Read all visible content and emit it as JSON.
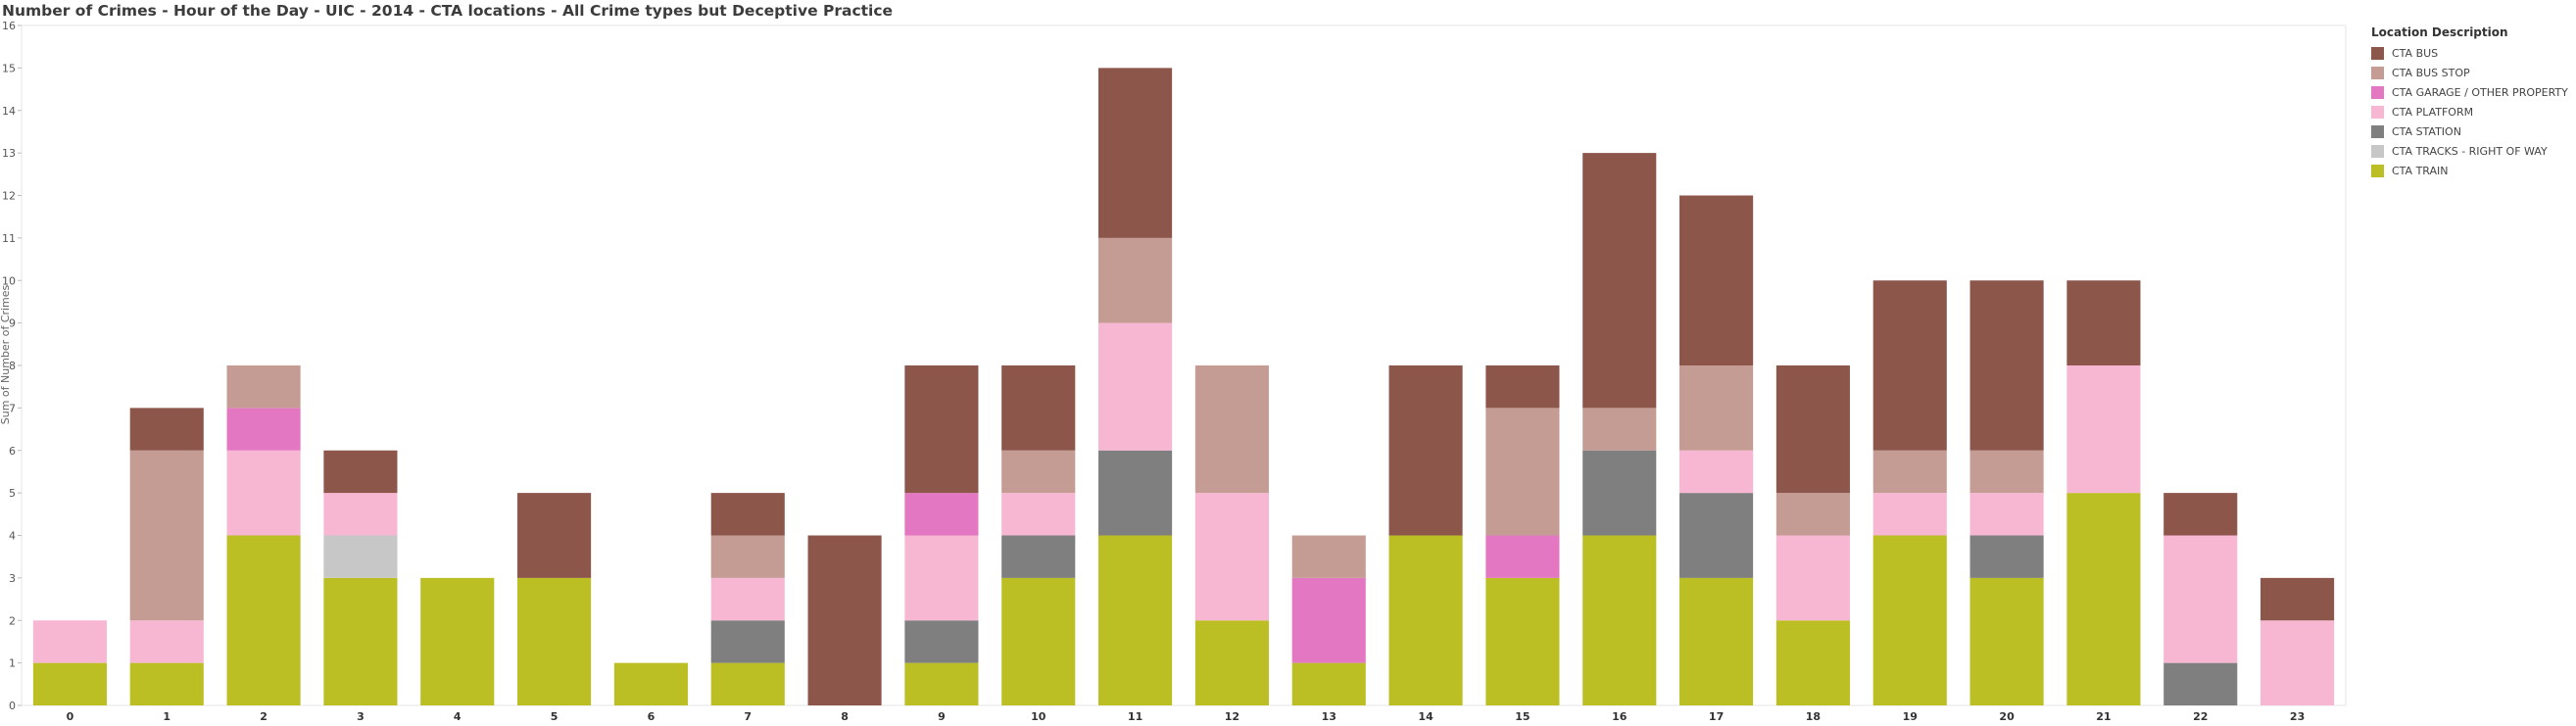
{
  "chart_data": {
    "type": "bar",
    "stacked": true,
    "title": "Number of Crimes - Hour of the Day - UIC - 2014 - CTA locations - All Crime types but Deceptive Practice",
    "ylabel": "Sum of Number of Crimes",
    "xlabel": "",
    "ylim": [
      0,
      16
    ],
    "yticks": [
      "0",
      "1",
      "2",
      "3",
      "4",
      "5",
      "6",
      "7",
      "8",
      "9",
      "10",
      "11",
      "12",
      "13",
      "14",
      "15",
      "16"
    ],
    "grid": false,
    "legend_position": "right",
    "legend_title": "Location Description",
    "categories": [
      "0",
      "1",
      "2",
      "3",
      "4",
      "5",
      "6",
      "7",
      "8",
      "9",
      "10",
      "11",
      "12",
      "13",
      "14",
      "15",
      "16",
      "17",
      "18",
      "19",
      "20",
      "21",
      "22",
      "23"
    ],
    "series": [
      {
        "name": "CTA TRAIN",
        "color": "#bcbf24",
        "values": [
          1,
          1,
          4,
          3,
          3,
          3,
          1,
          1,
          0,
          1,
          3,
          4,
          2,
          1,
          4,
          3,
          4,
          3,
          2,
          4,
          3,
          5,
          0,
          0
        ]
      },
      {
        "name": "CTA TRACKS - RIGHT OF WAY",
        "color": "#c7c7c7",
        "values": [
          0,
          0,
          0,
          1,
          0,
          0,
          0,
          0,
          0,
          0,
          0,
          0,
          0,
          0,
          0,
          0,
          0,
          0,
          0,
          0,
          0,
          0,
          0,
          0
        ]
      },
      {
        "name": "CTA STATION",
        "color": "#7f7f7f",
        "values": [
          0,
          0,
          0,
          0,
          0,
          0,
          0,
          1,
          0,
          1,
          1,
          2,
          0,
          0,
          0,
          0,
          2,
          2,
          0,
          0,
          1,
          0,
          1,
          0
        ]
      },
      {
        "name": "CTA PLATFORM",
        "color": "#f7b6d2",
        "values": [
          1,
          1,
          2,
          1,
          0,
          0,
          0,
          1,
          0,
          2,
          1,
          3,
          3,
          0,
          0,
          0,
          0,
          1,
          2,
          1,
          1,
          3,
          3,
          2
        ]
      },
      {
        "name": "CTA GARAGE / OTHER PROPERTY",
        "color": "#e377c2",
        "values": [
          0,
          0,
          1,
          0,
          0,
          0,
          0,
          0,
          0,
          1,
          0,
          0,
          0,
          2,
          0,
          1,
          0,
          0,
          0,
          0,
          0,
          0,
          0,
          0
        ]
      },
      {
        "name": "CTA BUS STOP",
        "color": "#c49c94",
        "values": [
          0,
          4,
          1,
          0,
          0,
          0,
          0,
          1,
          0,
          0,
          1,
          2,
          3,
          1,
          0,
          3,
          1,
          2,
          1,
          1,
          1,
          0,
          0,
          0
        ]
      },
      {
        "name": "CTA BUS",
        "color": "#8c564b",
        "values": [
          0,
          1,
          0,
          1,
          0,
          2,
          0,
          1,
          4,
          3,
          2,
          4,
          0,
          0,
          4,
          1,
          6,
          4,
          3,
          4,
          4,
          2,
          1,
          1
        ]
      }
    ],
    "legend_order": [
      "CTA BUS",
      "CTA BUS STOP",
      "CTA GARAGE / OTHER PROPERTY",
      "CTA PLATFORM",
      "CTA STATION",
      "CTA TRACKS - RIGHT OF WAY",
      "CTA TRAIN"
    ]
  }
}
